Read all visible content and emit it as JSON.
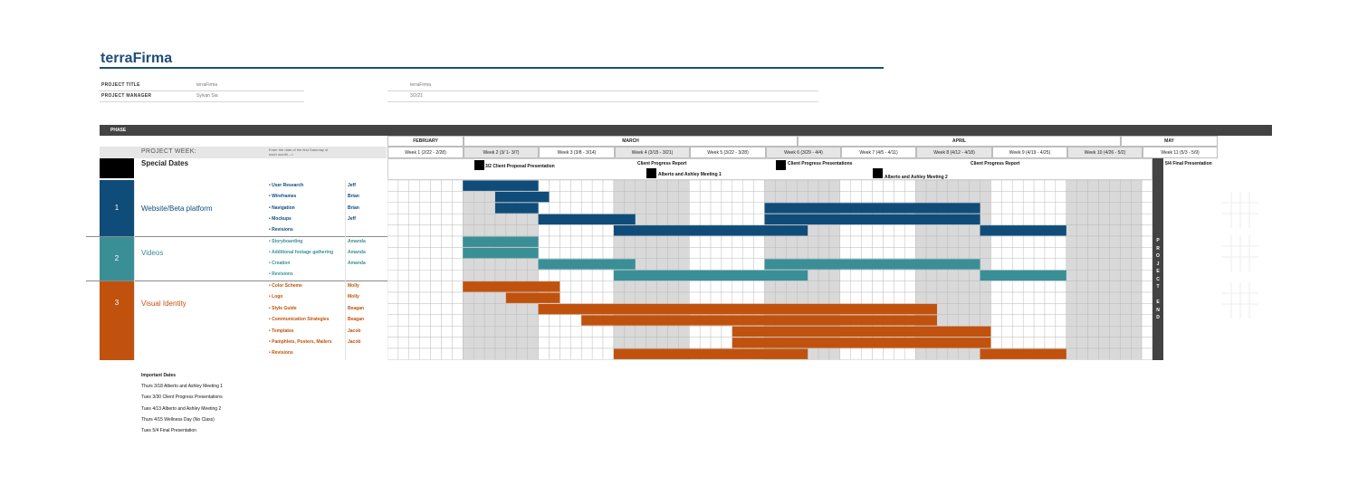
{
  "brand": "terraFirma",
  "meta": {
    "project_title_label": "PROJECT TITLE",
    "project_title_value": "terraFirma",
    "project_manager_label": "PROJECT MANAGER",
    "project_manager_value": "Sylvan Sia",
    "right_title": "terraFirma",
    "right_date": "3/2/21"
  },
  "phase_header": "PHASE",
  "months": [
    "FEBRUARY",
    "MARCH",
    "APRIL",
    "MAY"
  ],
  "project_week_label": "PROJECT WEEK:",
  "project_week_hint": "Enter the date of the first Saturday of each month -->",
  "weeks": [
    "Week 1 (2/22 - 2/28)",
    "Week 2 (3/ 1- 3/7)",
    "Week 3 (3/8 - 3/14)",
    "Week 4 (3/15 - 3/21)",
    "Week 5 (3/22 - 3/28)",
    "Week 6 (3/29 - 4/4)",
    "Week 7 (4/5 - 4/11)",
    "Week 8 (4/12 - 4/18)",
    "Week 9 (4/19 - 4/25)",
    "Week 10 (4/26 - 5/2)",
    "Week 11 (5/3 - 5/9)"
  ],
  "special_dates_label": "Special Dates",
  "milestones": [
    {
      "text": "3/2 Client Proposal Presentation"
    },
    {
      "text": "Client Progress Report"
    },
    {
      "text": "Alberto and Ashley Meeting 1"
    },
    {
      "text": "Client Progress Presentations"
    },
    {
      "text": "Alberto and Ashley Meeting 2"
    },
    {
      "text": "Client Progress Report"
    },
    {
      "text": "5/4 Final Presentation"
    }
  ],
  "phases": [
    {
      "number": "1",
      "name": "Website/Beta platform",
      "color": "#0f4c7a",
      "tasks": [
        {
          "name": "• User Research",
          "owner": "Jeff",
          "bars": [
            [
              7,
              14
            ]
          ]
        },
        {
          "name": "• Wireframes",
          "owner": "Brian",
          "bars": [
            [
              10,
              15
            ]
          ]
        },
        {
          "name": "• Navigation",
          "owner": "Brian",
          "bars": [
            [
              10,
              14
            ],
            [
              35,
              55
            ]
          ]
        },
        {
          "name": "• Mockups",
          "owner": "Jeff",
          "bars": [
            [
              14,
              23
            ],
            [
              35,
              55
            ]
          ]
        },
        {
          "name": "• Revisions",
          "owner": "",
          "bars": [
            [
              21,
              39
            ],
            [
              55,
              63
            ]
          ]
        }
      ]
    },
    {
      "number": "2",
      "name": "Videos",
      "color": "#3a8f97",
      "tasks": [
        {
          "name": "• Storyboarding",
          "owner": "Amanda",
          "bars": [
            [
              7,
              14
            ]
          ]
        },
        {
          "name": "• Additional footage gathering",
          "owner": "Amanda",
          "bars": [
            [
              7,
              14
            ]
          ]
        },
        {
          "name": "• Creation",
          "owner": "Amanda",
          "bars": [
            [
              14,
              23
            ],
            [
              35,
              55
            ]
          ]
        },
        {
          "name": "• Revisions",
          "owner": "",
          "bars": [
            [
              21,
              39
            ],
            [
              55,
              63
            ]
          ]
        }
      ]
    },
    {
      "number": "3",
      "name": "Visual Identity",
      "color": "#c0520e",
      "tasks": [
        {
          "name": "• Color Scheme",
          "owner": "Molly",
          "bars": [
            [
              7,
              16
            ]
          ]
        },
        {
          "name": "• Logo",
          "owner": "Molly",
          "bars": [
            [
              11,
              16
            ]
          ]
        },
        {
          "name": "• Style Guide",
          "owner": "Beagan",
          "bars": [
            [
              14,
              51
            ]
          ]
        },
        {
          "name": "• Communication Strategies",
          "owner": "Beagan",
          "bars": [
            [
              18,
              51
            ]
          ]
        },
        {
          "name": "• Templates",
          "owner": "Jacob",
          "bars": [
            [
              32,
              56
            ]
          ]
        },
        {
          "name": "• Pamphlets, Posters, Mailers",
          "owner": "Jacob",
          "bars": [
            [
              32,
              56
            ]
          ]
        },
        {
          "name": "• Revisions",
          "owner": "",
          "bars": [
            [
              21,
              39
            ],
            [
              55,
              63
            ]
          ]
        }
      ]
    }
  ],
  "project_end": [
    "P",
    "R",
    "O",
    "J",
    "E",
    "C",
    "T",
    "",
    "E",
    "N",
    "D"
  ],
  "important_dates": {
    "title": "Important Dates",
    "items": [
      "Thurs 3/18 Alberto and Ashley Meeting 1",
      "Tues 3/30 Client Progress Presentations",
      "Tues 4/13 Alberto and Ashley Meeting 2",
      "Thurs 4/15 Wellness Day (No Class)",
      "Tues 5/4 Final Presentation"
    ]
  },
  "colors": {
    "grid_shade": "#d9d9d9",
    "grid_line": "#b7b7b7",
    "header_dark": "#434343"
  }
}
